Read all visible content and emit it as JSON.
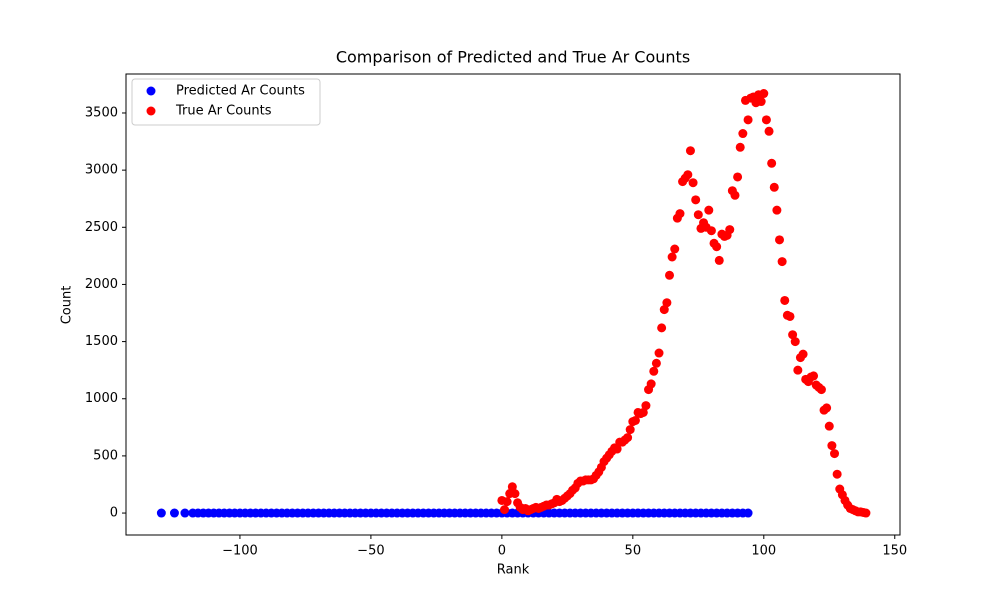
{
  "chart_data": {
    "type": "scatter",
    "title": "Comparison of Predicted and True Ar Counts",
    "x_label": "Rank",
    "y_label": "Count",
    "xlim": [
      -143.5,
      152
    ],
    "ylim": [
      -192,
      3841
    ],
    "xticks": [
      {
        "value": -100,
        "label": "−100"
      },
      {
        "value": -50,
        "label": "−50"
      },
      0,
      50,
      100,
      150
    ],
    "yticks": [
      0,
      500,
      1000,
      1500,
      2000,
      2500,
      3000,
      3500
    ],
    "legend": "upper-left",
    "series": [
      {
        "name": "Predicted Ar Counts",
        "color": "#0000ff",
        "x": [
          -130,
          -125,
          -121,
          -118,
          -116,
          -114,
          -112,
          -110,
          -108,
          -106,
          -104,
          -102,
          -100,
          -98,
          -96,
          -94,
          -92,
          -90,
          -88,
          -86,
          -84,
          -82,
          -80,
          -78,
          -76,
          -74,
          -72,
          -70,
          -68,
          -66,
          -64,
          -62,
          -60,
          -58,
          -56,
          -54,
          -52,
          -50,
          -48,
          -46,
          -44,
          -42,
          -40,
          -38,
          -36,
          -34,
          -32,
          -30,
          -28,
          -26,
          -24,
          -22,
          -20,
          -18,
          -16,
          -14,
          -12,
          -10,
          -8,
          -6,
          -4,
          -2,
          0,
          2,
          4,
          6,
          8,
          10,
          12,
          14,
          16,
          18,
          20,
          22,
          24,
          26,
          28,
          30,
          32,
          34,
          36,
          38,
          40,
          42,
          44,
          46,
          48,
          50,
          52,
          54,
          56,
          58,
          60,
          62,
          64,
          66,
          68,
          70,
          72,
          74,
          76,
          78,
          80,
          82,
          84,
          86,
          88,
          90,
          92,
          94
        ],
        "values": [
          0,
          0,
          0,
          0,
          0,
          0,
          0,
          0,
          0,
          0,
          0,
          0,
          0,
          0,
          0,
          0,
          0,
          0,
          0,
          0,
          0,
          0,
          0,
          0,
          0,
          0,
          0,
          0,
          0,
          0,
          0,
          0,
          0,
          0,
          0,
          0,
          0,
          0,
          0,
          0,
          0,
          0,
          0,
          0,
          0,
          0,
          0,
          0,
          0,
          0,
          0,
          0,
          0,
          0,
          0,
          0,
          0,
          0,
          0,
          0,
          0,
          0,
          0,
          0,
          0,
          0,
          0,
          0,
          0,
          0,
          0,
          0,
          0,
          0,
          0,
          0,
          0,
          0,
          0,
          0,
          0,
          0,
          0,
          0,
          0,
          0,
          0,
          0,
          0,
          0,
          0,
          0,
          0,
          0,
          0,
          0,
          0,
          0,
          0,
          0,
          0,
          0,
          0,
          0,
          0,
          0,
          0,
          0,
          0,
          0
        ]
      },
      {
        "name": "True Ar Counts",
        "color": "#ff0000",
        "x": [
          0,
          1,
          2,
          3,
          4,
          5,
          6,
          7,
          8,
          9,
          10,
          11,
          12,
          13,
          14,
          15,
          16,
          17,
          18,
          19,
          20,
          21,
          22,
          23,
          24,
          25,
          26,
          27,
          28,
          29,
          30,
          31,
          32,
          33,
          34,
          35,
          36,
          37,
          38,
          39,
          40,
          41,
          42,
          43,
          44,
          45,
          46,
          47,
          48,
          49,
          50,
          51,
          52,
          53,
          54,
          55,
          56,
          57,
          58,
          59,
          60,
          61,
          62,
          63,
          64,
          65,
          66,
          67,
          68,
          69,
          70,
          71,
          72,
          73,
          74,
          75,
          76,
          77,
          78,
          79,
          80,
          81,
          82,
          83,
          84,
          85,
          86,
          87,
          88,
          89,
          90,
          91,
          92,
          93,
          94,
          95,
          96,
          97,
          98,
          99,
          100,
          101,
          102,
          103,
          104,
          105,
          106,
          107,
          108,
          109,
          110,
          111,
          112,
          113,
          114,
          115,
          116,
          117,
          118,
          119,
          120,
          121,
          122,
          123,
          124,
          125,
          126,
          127,
          128,
          129,
          130,
          131,
          132,
          133,
          134,
          135,
          136,
          137,
          138,
          139
        ],
        "values": [
          110,
          30,
          100,
          170,
          230,
          170,
          90,
          50,
          30,
          40,
          20,
          30,
          40,
          50,
          40,
          50,
          60,
          70,
          70,
          80,
          90,
          120,
          100,
          110,
          130,
          150,
          170,
          200,
          220,
          260,
          280,
          280,
          290,
          290,
          290,
          300,
          330,
          360,
          400,
          450,
          480,
          510,
          540,
          570,
          560,
          620,
          620,
          640,
          660,
          730,
          800,
          810,
          880,
          870,
          880,
          940,
          1080,
          1130,
          1240,
          1310,
          1400,
          1620,
          1780,
          1840,
          2080,
          2240,
          2310,
          2580,
          2620,
          2900,
          2930,
          2960,
          3170,
          2890,
          2740,
          2610,
          2490,
          2540,
          2500,
          2650,
          2470,
          2360,
          2330,
          2210,
          2440,
          2420,
          2430,
          2480,
          2820,
          2780,
          2940,
          3200,
          3320,
          3610,
          3440,
          3630,
          3640,
          3590,
          3660,
          3600,
          3670,
          3440,
          3340,
          3060,
          2850,
          2650,
          2390,
          2200,
          1860,
          1730,
          1720,
          1560,
          1500,
          1250,
          1360,
          1390,
          1170,
          1150,
          1190,
          1200,
          1120,
          1100,
          1080,
          900,
          920,
          760,
          590,
          520,
          340,
          210,
          160,
          110,
          70,
          40,
          30,
          20,
          10,
          10,
          5,
          0
        ]
      }
    ]
  }
}
